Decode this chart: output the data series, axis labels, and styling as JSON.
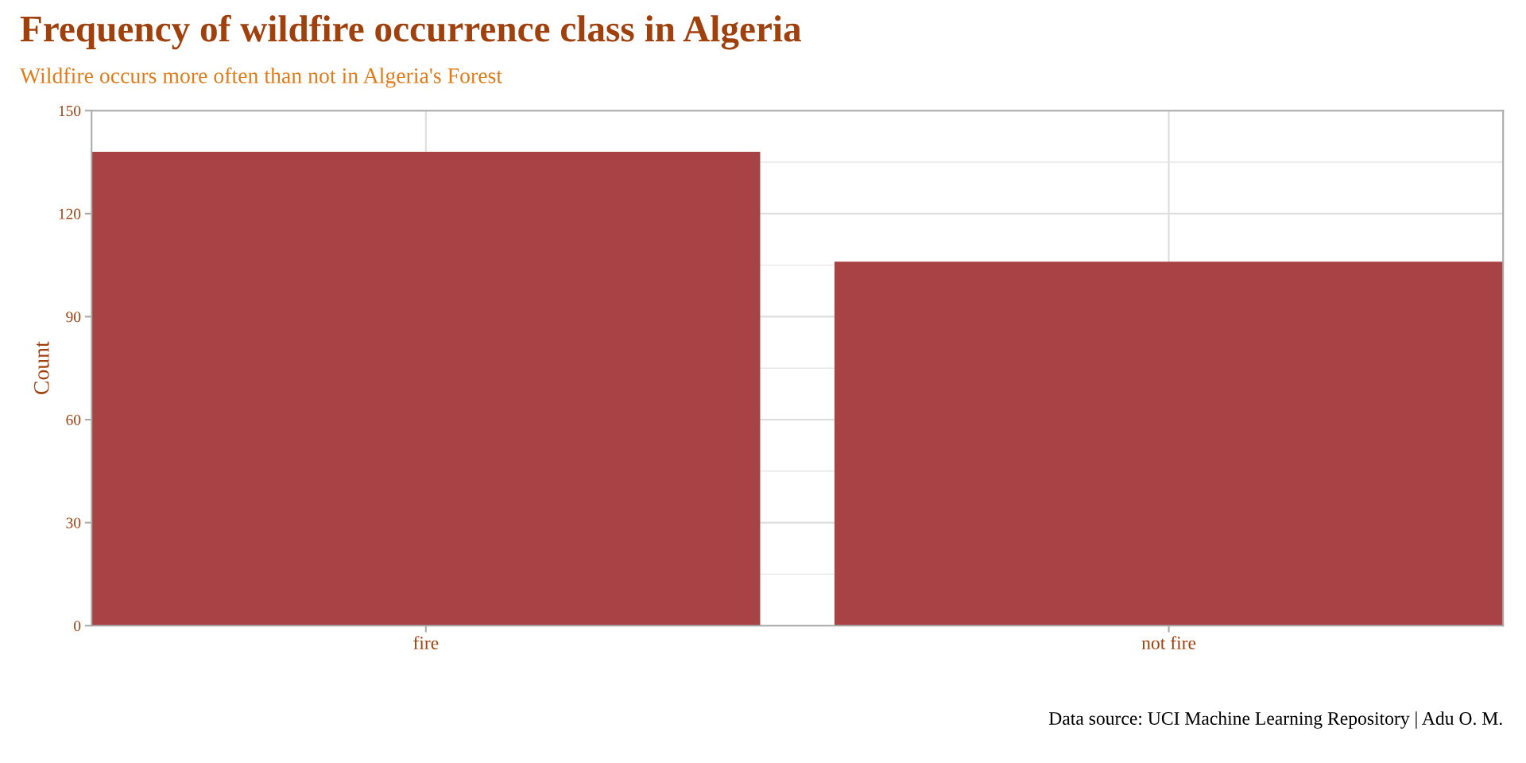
{
  "chart_data": {
    "type": "bar",
    "title": "Frequency of wildfire occurrence class in Algeria",
    "subtitle": "Wildfire occurs more often than not in Algeria's Forest",
    "ylabel": "Count",
    "categories": [
      "fire",
      "not fire"
    ],
    "values": [
      138,
      106
    ],
    "color": "#a84245",
    "ylim": [
      0,
      150
    ],
    "yticks": [
      0,
      30,
      60,
      90,
      120,
      150
    ],
    "grid": true,
    "annotations": [
      "Data source: UCI Machine Learning Repository | Adu O. M."
    ]
  }
}
